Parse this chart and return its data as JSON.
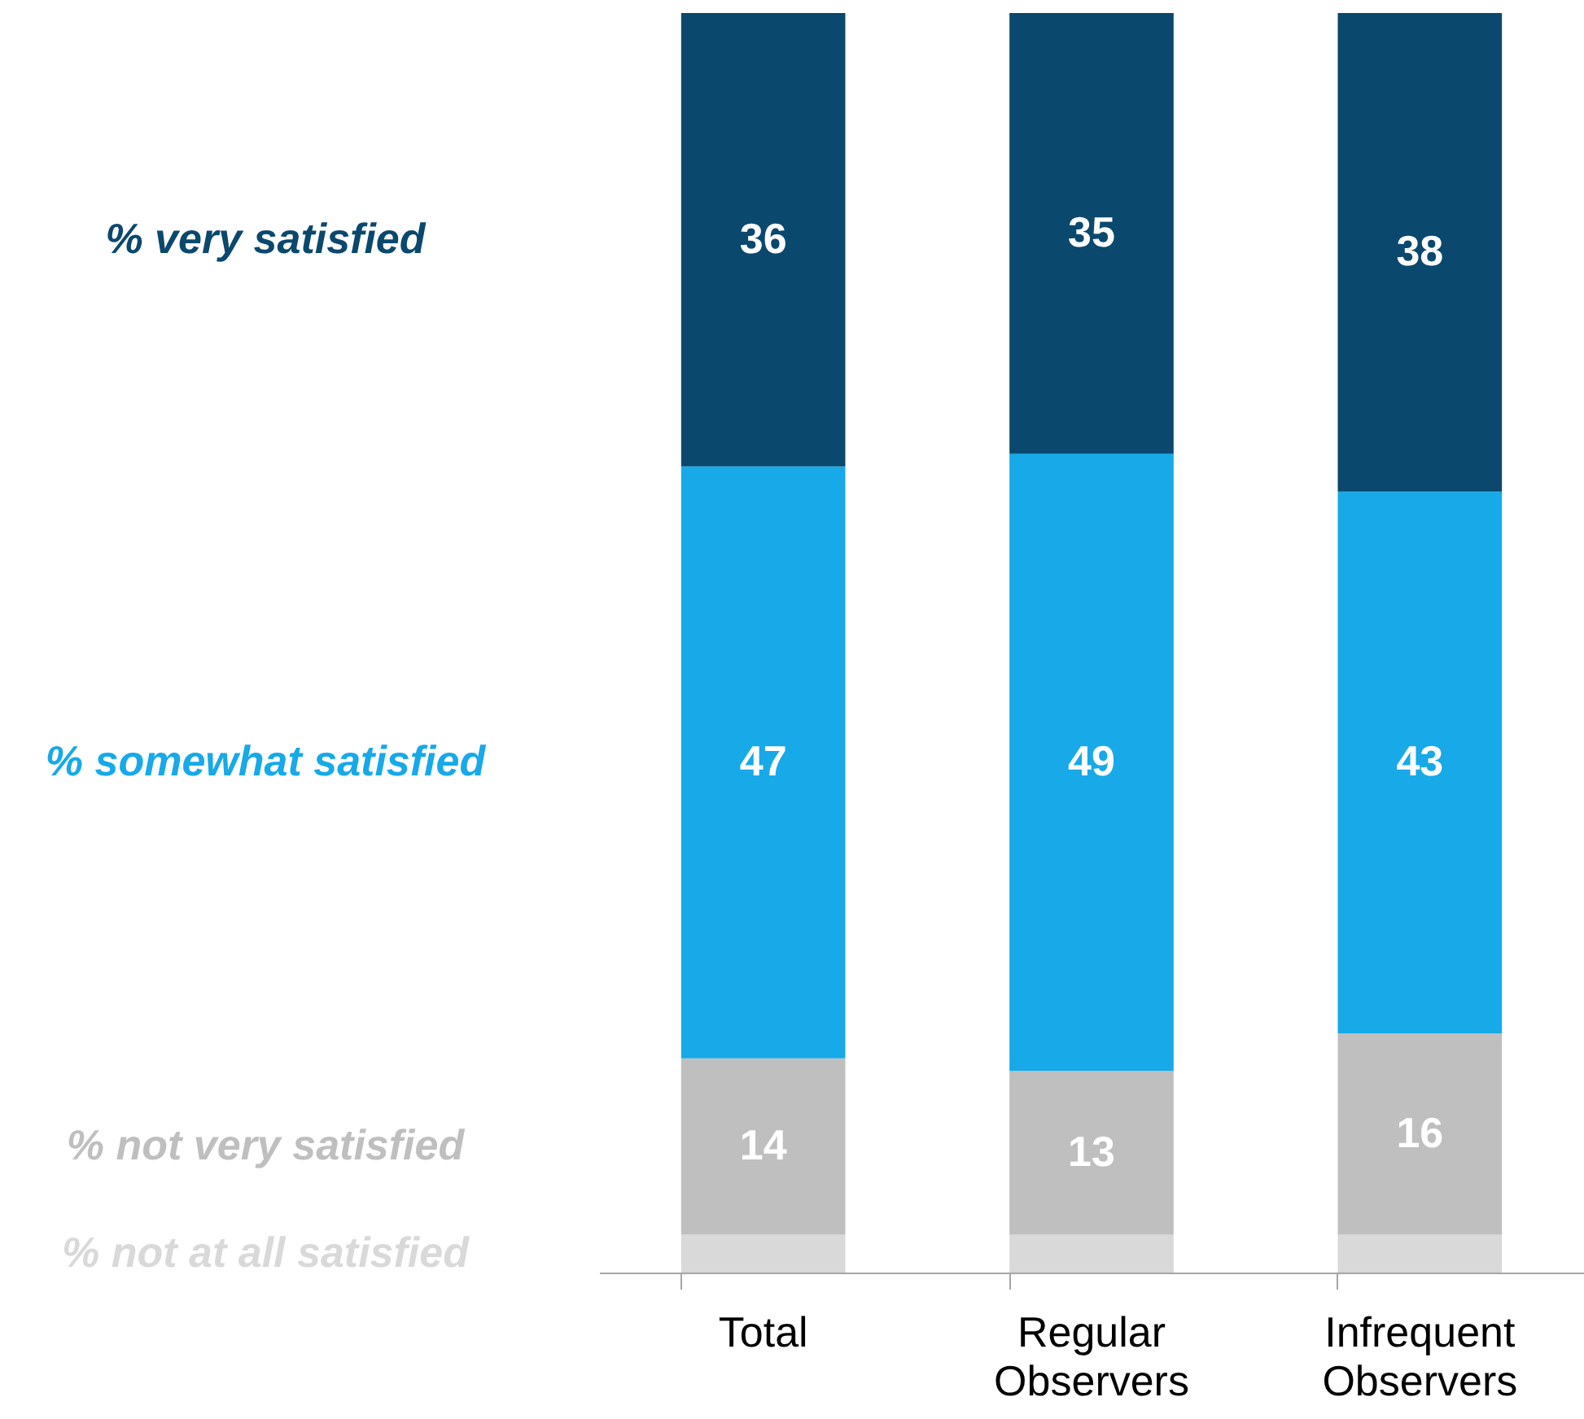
{
  "chart_data": {
    "type": "bar",
    "stacked": true,
    "categories": [
      "Total",
      "Regular Observers",
      "Infrequent Observers"
    ],
    "series": [
      {
        "name": "% not at all satisfied",
        "color": "#d9d9d9",
        "values": [
          3,
          3,
          3
        ],
        "value_labels": [
          null,
          null,
          null
        ]
      },
      {
        "name": "% not very satisfied",
        "color": "#bfbfbf",
        "values": [
          14,
          13,
          16
        ],
        "value_labels": [
          "14",
          "13",
          "16"
        ]
      },
      {
        "name": "% somewhat satisfied",
        "color": "#17a9e8",
        "values": [
          47,
          49,
          43
        ],
        "value_labels": [
          "47",
          "49",
          "43"
        ]
      },
      {
        "name": "% very satisfied",
        "color": "#0b486e",
        "values": [
          36,
          35,
          38
        ],
        "value_labels": [
          "36",
          "35",
          "38"
        ]
      }
    ]
  }
}
